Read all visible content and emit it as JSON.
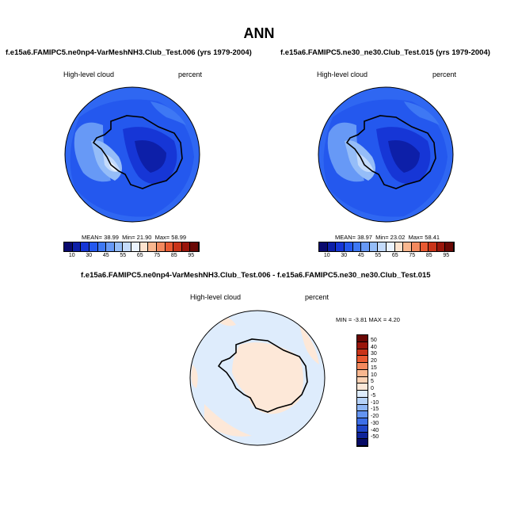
{
  "main_title": "ANN",
  "panels": {
    "left": {
      "title": "f.e15a6.FAMIPC5.ne0np4-VarMeshNH3.Club_Test.006 (yrs 1979-2004)",
      "variable": "High-level cloud",
      "units": "percent",
      "stats": {
        "mean_label": "MEAN=",
        "mean": "38.99",
        "min_label": "Min=",
        "min": "21.90",
        "max_label": "Max=",
        "max": "58.99"
      }
    },
    "right": {
      "title": "f.e15a6.FAMIPC5.ne30_ne30.Club_Test.015 (yrs 1979-2004)",
      "variable": "High-level cloud",
      "units": "percent",
      "stats": {
        "mean_label": "MEAN=",
        "mean": "38.97",
        "min_label": "Min=",
        "min": "23.02",
        "max_label": "Max=",
        "max": "58.41"
      }
    },
    "diff": {
      "title": "f.e15a6.FAMIPC5.ne0np4-VarMeshNH3.Club_Test.006 - f.e15a6.FAMIPC5.ne30_ne30.Club_Test.015",
      "variable": "High-level cloud",
      "units": "percent",
      "stats": {
        "min_label": "MIN =",
        "min": "-3.81",
        "max_label": "MAX =",
        "max": "4.20"
      }
    }
  },
  "colorbar_h": {
    "labels": [
      "10",
      "30",
      "45",
      "55",
      "65",
      "75",
      "85",
      "95"
    ],
    "colors": [
      "#0a0a6e",
      "#0d1fa8",
      "#1636d6",
      "#2458ee",
      "#3e78f4",
      "#6799f6",
      "#95bdf8",
      "#c4dbfb",
      "#eaf3ff",
      "#fde3cf",
      "#f9b78f",
      "#f3895e",
      "#e85a32",
      "#c93419",
      "#9a160b",
      "#6a0805"
    ]
  },
  "colorbar_v": {
    "labels": [
      "50",
      "40",
      "30",
      "20",
      "15",
      "10",
      "5",
      "0",
      "-5",
      "-10",
      "-15",
      "-20",
      "-30",
      "-40",
      "-50"
    ],
    "colors": [
      "#6a0805",
      "#9a160b",
      "#c93419",
      "#e85a32",
      "#f3895e",
      "#f9b78f",
      "#fcd2b4",
      "#fde8d8",
      "#deecfc",
      "#b6d2f8",
      "#8fb6f5",
      "#6494f1",
      "#3d6fe8",
      "#1f45c8",
      "#0e239a",
      "#070b66"
    ]
  }
}
